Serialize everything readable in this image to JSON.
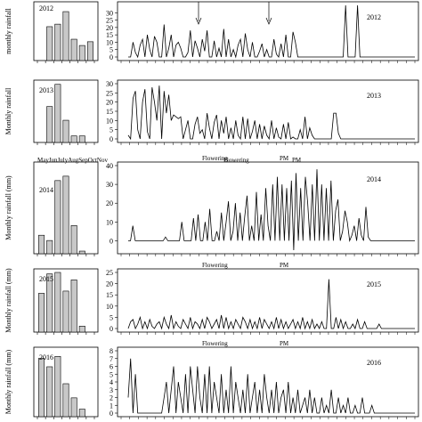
{
  "months": [
    "May",
    "Jun",
    "July",
    "Aug",
    "Sep",
    "Oct",
    "Nov"
  ],
  "month_axis_text": "MayJunJulyAugSepOctNov",
  "annotations": {
    "flowering": "Flowering",
    "pm": "PM"
  },
  "ylabel_monthly": "Monthly rainfall (mm)",
  "ylabel_monthly_top": "monthly rainfall",
  "ylabel_monthly_alt": "Monthly rainfall",
  "colors": {
    "bar_fill": "#c8c8c8",
    "line": "#000000"
  },
  "chart_data": [
    {
      "year": "2012",
      "bar": {
        "type": "bar",
        "title": "2012",
        "ylabel": "monthly rainfall",
        "categories": [
          "May",
          "Jun",
          "July",
          "Aug",
          "Sep",
          "Oct",
          "Nov"
        ],
        "values": [
          0,
          135,
          145,
          195,
          85,
          60,
          75
        ],
        "ylim": [
          0,
          220
        ]
      },
      "line": {
        "type": "line",
        "title": "2012",
        "yticks": [
          0,
          5,
          10,
          15,
          20,
          25,
          30
        ],
        "ylim": [
          0,
          35
        ],
        "values": [
          0,
          0,
          10,
          3,
          0,
          8,
          12,
          0,
          15,
          5,
          0,
          14,
          10,
          0,
          0,
          22,
          0,
          6,
          15,
          0,
          8,
          10,
          6,
          0,
          0,
          3,
          18,
          0,
          11,
          6,
          0,
          12,
          4,
          18,
          0,
          0,
          11,
          0,
          6,
          0,
          19,
          0,
          12,
          0,
          5,
          0,
          8,
          12,
          0,
          16,
          5,
          0,
          10,
          0,
          0,
          4,
          9,
          0,
          5,
          0,
          0,
          12,
          2,
          0,
          9,
          0,
          15,
          0,
          0,
          17,
          10,
          0,
          0,
          0,
          0,
          0,
          0,
          0,
          0,
          0,
          0,
          0,
          0,
          0,
          0,
          0,
          0,
          0,
          0,
          0,
          0,
          35,
          0,
          0,
          0,
          0,
          35,
          0,
          0,
          0,
          0,
          0,
          0,
          0,
          0,
          0,
          0,
          0,
          0,
          0,
          0,
          0,
          0,
          0,
          0,
          0,
          0,
          0,
          0,
          0,
          0
        ]
      },
      "arrows": [
        {
          "x": 91
        },
        {
          "x": 170
        }
      ]
    },
    {
      "year": "2013",
      "bar": {
        "type": "bar",
        "title": "2013",
        "ylabel": "Monthly rainfall",
        "categories": [
          "May",
          "Jun",
          "July",
          "Aug",
          "Sep",
          "Oct",
          "Nov"
        ],
        "values": [
          0,
          275,
          445,
          170,
          50,
          50,
          0
        ],
        "ylim": [
          0,
          450
        ]
      },
      "line": {
        "type": "line",
        "title": "2013",
        "yticks": [
          0,
          5,
          10,
          15,
          20,
          25,
          30
        ],
        "ylim": [
          0,
          30
        ],
        "values": [
          2,
          0,
          22,
          26,
          5,
          0,
          20,
          27,
          4,
          0,
          28,
          20,
          10,
          29,
          0,
          26,
          14,
          24,
          10,
          13,
          12,
          11,
          12,
          0,
          5,
          10,
          0,
          0,
          8,
          12,
          3,
          5,
          0,
          14,
          6,
          0,
          9,
          13,
          0,
          10,
          3,
          12,
          0,
          6,
          0,
          10,
          2,
          0,
          12,
          0,
          11,
          0,
          4,
          10,
          0,
          8,
          0,
          7,
          2,
          0,
          10,
          0,
          6,
          1,
          0,
          8,
          0,
          9,
          0,
          1,
          0,
          0,
          5,
          0,
          12,
          0,
          6,
          2,
          0,
          0,
          0,
          0,
          0,
          0,
          0,
          0,
          14,
          14,
          3,
          0,
          0,
          0,
          0,
          0,
          0,
          0,
          0,
          0,
          0,
          0,
          0,
          0,
          0,
          0,
          0,
          0,
          0,
          0,
          0,
          0,
          0,
          0,
          0,
          0,
          0,
          0,
          0,
          0,
          0,
          0,
          0
        ]
      },
      "extra_months_label": true
    },
    {
      "year": "2014",
      "bar": {
        "type": "bar",
        "title": "2014",
        "ylabel": "Monthly rainfall (mm)",
        "categories": [
          "May",
          "Jun",
          "July",
          "Aug",
          "Sep",
          "Oct",
          "Nov"
        ],
        "values": [
          105,
          75,
          415,
          440,
          160,
          15,
          0
        ],
        "ylim": [
          0,
          500
        ]
      },
      "line": {
        "type": "line",
        "title": "2014",
        "yticks": [
          0,
          10,
          20,
          30,
          40
        ],
        "ylim": [
          -5,
          40
        ],
        "values": [
          0,
          0,
          8,
          0,
          0,
          0,
          0,
          0,
          0,
          0,
          0,
          0,
          0,
          0,
          0,
          0,
          2,
          0,
          0,
          0,
          0,
          0,
          0,
          10,
          0,
          0,
          0,
          0,
          12,
          0,
          14,
          0,
          0,
          10,
          0,
          17,
          0,
          0,
          5,
          0,
          15,
          0,
          10,
          21,
          0,
          5,
          20,
          0,
          15,
          0,
          13,
          24,
          0,
          8,
          0,
          26,
          0,
          14,
          0,
          28,
          8,
          0,
          30,
          0,
          34,
          0,
          30,
          0,
          28,
          0,
          32,
          -5,
          36,
          0,
          28,
          0,
          34,
          20,
          0,
          30,
          0,
          38,
          0,
          30,
          0,
          28,
          0,
          32,
          0,
          16,
          22,
          0,
          5,
          16,
          10,
          0,
          3,
          8,
          0,
          12,
          3,
          0,
          18,
          2,
          0,
          0,
          0,
          0,
          0,
          0,
          0,
          0,
          0,
          0,
          0,
          0,
          0,
          0,
          0,
          0,
          0,
          0,
          0,
          0
        ]
      },
      "extra_annotations": true
    },
    {
      "year": "2015",
      "bar": {
        "type": "bar",
        "title": "2015",
        "ylabel": "Monthly rainfall (mm)",
        "categories": [
          "May",
          "Jun",
          "July",
          "Aug",
          "Sep",
          "Oct",
          "Nov"
        ],
        "values": [
          52,
          78,
          80,
          55,
          70,
          8,
          0
        ],
        "ylim": [
          0,
          80
        ]
      },
      "line": {
        "type": "line",
        "title": "2015",
        "yticks": [
          0,
          5,
          10,
          15,
          20,
          25
        ],
        "ylim": [
          0,
          25
        ],
        "values": [
          0,
          3,
          4,
          0,
          2,
          5,
          0,
          3,
          0,
          4,
          1,
          0,
          2,
          3,
          0,
          5,
          2,
          0,
          6,
          0,
          3,
          1,
          0,
          4,
          2,
          0,
          5,
          0,
          3,
          2,
          0,
          4,
          0,
          5,
          3,
          0,
          2,
          4,
          0,
          6,
          0,
          5,
          0,
          3,
          0,
          4,
          2,
          0,
          5,
          3,
          0,
          4,
          0,
          3,
          0,
          5,
          0,
          4,
          2,
          0,
          3,
          0,
          5,
          0,
          4,
          0,
          3,
          0,
          2,
          4,
          0,
          3,
          0,
          5,
          0,
          3,
          0,
          4,
          0,
          2,
          0,
          3,
          0,
          0,
          22,
          0,
          0,
          5,
          0,
          4,
          0,
          3,
          0,
          0,
          2,
          0,
          4,
          0,
          0,
          3,
          0,
          0,
          0,
          0,
          0,
          2,
          0,
          0,
          0,
          0,
          0,
          0,
          0,
          0,
          0,
          0,
          0,
          0,
          0,
          0,
          0
        ]
      },
      "extra_annotations": true
    },
    {
      "year": "2016",
      "bar": {
        "type": "bar",
        "title": "2016",
        "ylabel": "Monthly rainfall (mm)",
        "categories": [
          "May",
          "Jun",
          "July",
          "Aug",
          "Sep",
          "Oct",
          "Nov"
        ],
        "values": [
          62,
          53,
          64,
          35,
          20,
          8,
          0
        ],
        "ylim": [
          0,
          70
        ]
      },
      "line": {
        "type": "line",
        "title": "2016",
        "yticks": [
          0,
          1,
          2,
          3,
          4,
          5,
          6,
          7,
          8
        ],
        "ylim": [
          0,
          8
        ],
        "values": [
          2,
          7,
          0,
          5,
          0,
          0,
          0,
          0,
          0,
          0,
          0,
          0,
          0,
          0,
          0,
          2,
          4,
          0,
          3,
          6,
          0,
          4,
          2,
          0,
          5,
          0,
          6,
          3,
          0,
          6,
          2,
          0,
          5,
          0,
          6,
          0,
          4,
          2,
          0,
          5,
          0,
          3,
          0,
          6,
          0,
          4,
          2,
          0,
          3,
          0,
          5,
          0,
          2,
          4,
          0,
          3,
          0,
          5,
          2,
          0,
          3,
          0,
          4,
          0,
          2,
          3,
          0,
          4,
          0,
          2,
          0,
          3,
          0,
          1,
          2,
          0,
          3,
          0,
          2,
          0,
          0,
          2,
          0,
          1,
          0,
          3,
          0,
          0,
          2,
          0,
          1,
          0,
          2,
          0,
          0,
          1,
          0,
          0,
          2,
          0,
          0,
          0,
          1,
          0,
          0,
          0,
          0,
          0,
          0,
          0,
          0,
          0,
          0,
          0,
          0,
          0,
          0,
          0,
          0,
          0,
          0
        ]
      },
      "extra_annotations": true
    }
  ]
}
